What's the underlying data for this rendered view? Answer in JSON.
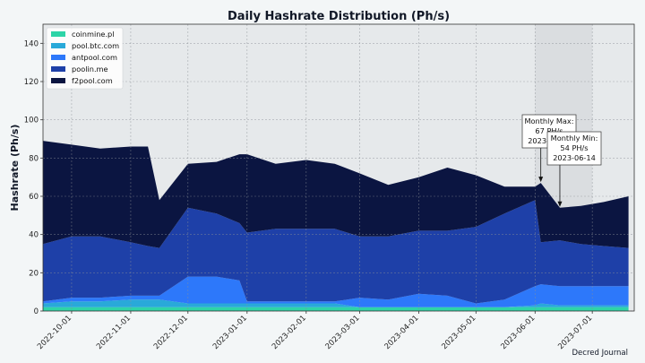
{
  "colors": {
    "background": "#f3f6f7",
    "plot_background": "#e6e9eb",
    "highlight_band": "#dadde0",
    "grid": "#8a8f96",
    "coinmine.pl": "#2dd4a7",
    "pool.btc.com": "#29a9d9",
    "antpool.com": "#2d78fa",
    "poolin.me": "#1e40a8",
    "f2pool.com": "#0b1541"
  },
  "chart_data": {
    "type": "area",
    "stacked": true,
    "title": "Daily Hashrate Distribution (Ph/s)",
    "xlabel": "",
    "ylabel": "Hashrate (Ph/s)",
    "ylim": [
      0,
      150
    ],
    "xlim": [
      "2022-09-16",
      "2023-07-23"
    ],
    "yticks": [
      0,
      20,
      40,
      60,
      80,
      100,
      120,
      140
    ],
    "xticks": [
      "2022-10-01",
      "2022-11-01",
      "2022-12-01",
      "2023-01-01",
      "2023-02-01",
      "2023-03-01",
      "2023-04-01",
      "2023-05-01",
      "2023-06-01",
      "2023-07-01"
    ],
    "grid": true,
    "legend_position": "top-left",
    "credit": "Decred Journal",
    "highlight": {
      "start": "2023-06-01",
      "end": "2023-07-01"
    },
    "x": [
      "2022-09-16",
      "2022-10-01",
      "2022-10-16",
      "2022-11-01",
      "2022-11-10",
      "2022-11-16",
      "2022-12-01",
      "2022-12-16",
      "2022-12-28",
      "2023-01-01",
      "2023-01-16",
      "2023-02-01",
      "2023-02-16",
      "2023-03-01",
      "2023-03-16",
      "2023-04-01",
      "2023-04-16",
      "2023-05-01",
      "2023-05-16",
      "2023-06-01",
      "2023-06-04",
      "2023-06-14",
      "2023-06-25",
      "2023-07-07",
      "2023-07-20"
    ],
    "series": [
      {
        "name": "coinmine.pl",
        "values": [
          2,
          2,
          2,
          2,
          2,
          2,
          2,
          2,
          2,
          2,
          2,
          2,
          2,
          2,
          2,
          2,
          2,
          2,
          2,
          2,
          2,
          2,
          2,
          2,
          2
        ]
      },
      {
        "name": "pool.btc.com",
        "values": [
          2,
          3,
          3,
          4,
          4,
          4,
          2,
          2,
          2,
          2,
          2,
          2,
          2,
          0,
          0,
          0,
          0,
          0,
          0,
          1,
          2,
          1,
          1,
          1,
          1
        ]
      },
      {
        "name": "antpool.com",
        "values": [
          1,
          2,
          2,
          2,
          2,
          2,
          14,
          14,
          12,
          1,
          1,
          1,
          1,
          5,
          4,
          7,
          6,
          2,
          4,
          10,
          10,
          10,
          10,
          10,
          10
        ]
      },
      {
        "name": "poolin.me",
        "values": [
          30,
          32,
          32,
          28,
          26,
          25,
          36,
          33,
          30,
          36,
          38,
          38,
          38,
          32,
          33,
          33,
          34,
          40,
          45,
          45,
          22,
          24,
          22,
          21,
          20
        ]
      },
      {
        "name": "f2pool.com",
        "values": [
          54,
          48,
          46,
          50,
          52,
          25,
          23,
          27,
          36,
          41,
          34,
          36,
          34,
          33,
          27,
          28,
          33,
          27,
          14,
          7,
          31,
          17,
          20,
          23,
          27
        ]
      }
    ],
    "annotations": [
      {
        "x": "2023-06-04",
        "y": 67,
        "text": "Monthly Max:\n67 PH/s\n2023-06-04"
      },
      {
        "x": "2023-06-14",
        "y": 54,
        "text": "Monthly Min:\n54 PH/s\n2023-06-14"
      }
    ]
  }
}
